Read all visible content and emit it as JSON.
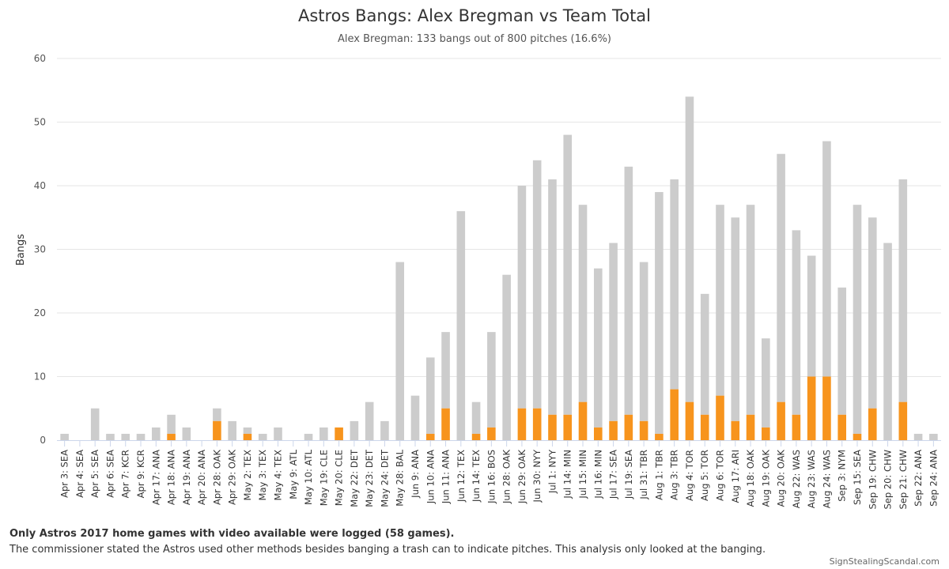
{
  "chart_data": {
    "type": "bar",
    "stacked": true,
    "title": "Astros Bangs: Alex Bregman vs Team Total",
    "subtitle": "Alex Bregman: 133 bangs out of 800 pitches (16.6%)",
    "xlabel": "",
    "ylabel": "Bangs",
    "ylim": [
      0,
      60
    ],
    "yticks": [
      0,
      10,
      20,
      30,
      40,
      50,
      60
    ],
    "grid": true,
    "legend": "none",
    "colors": {
      "bregman": "#f7941d",
      "team": "#cccccc",
      "grid": "#e6e6e6",
      "axis": "#ccd6eb"
    },
    "categories": [
      "Apr 3: SEA",
      "Apr 4: SEA",
      "Apr 5: SEA",
      "Apr 6: SEA",
      "Apr 7: KCR",
      "Apr 9: KCR",
      "Apr 17: ANA",
      "Apr 18: ANA",
      "Apr 19: ANA",
      "Apr 20: ANA",
      "Apr 28: OAK",
      "Apr 29: OAK",
      "May 2: TEX",
      "May 3: TEX",
      "May 4: TEX",
      "May 9: ATL",
      "May 10: ATL",
      "May 19: CLE",
      "May 20: CLE",
      "May 22: DET",
      "May 23: DET",
      "May 24: DET",
      "May 28: BAL",
      "Jun 9: ANA",
      "Jun 10: ANA",
      "Jun 11: ANA",
      "Jun 12: TEX",
      "Jun 14: TEX",
      "Jun 16: BOS",
      "Jun 28: OAK",
      "Jun 29: OAK",
      "Jun 30: NYY",
      "Jul 1: NYY",
      "Jul 14: MIN",
      "Jul 15: MIN",
      "Jul 16: MIN",
      "Jul 17: SEA",
      "Jul 19: SEA",
      "Jul 31: TBR",
      "Aug 1: TBR",
      "Aug 3: TBR",
      "Aug 4: TOR",
      "Aug 5: TOR",
      "Aug 6: TOR",
      "Aug 17: ARI",
      "Aug 18: OAK",
      "Aug 19: OAK",
      "Aug 20: OAK",
      "Aug 22: WAS",
      "Aug 23: WAS",
      "Aug 24: WAS",
      "Sep 3: NYM",
      "Sep 15: SEA",
      "Sep 19: CHW",
      "Sep 20: CHW",
      "Sep 21: CHW",
      "Sep 22: ANA",
      "Sep 24: ANA"
    ],
    "series": [
      {
        "key": "bregman",
        "values": [
          0,
          0,
          0,
          0,
          0,
          0,
          0,
          1,
          0,
          0,
          3,
          0,
          1,
          0,
          0,
          0,
          0,
          0,
          2,
          0,
          0,
          0,
          0,
          0,
          1,
          5,
          0,
          1,
          2,
          0,
          5,
          5,
          4,
          4,
          6,
          2,
          3,
          4,
          3,
          1,
          8,
          6,
          4,
          7,
          3,
          4,
          2,
          6,
          4,
          10,
          10,
          4,
          1,
          5,
          0,
          6,
          0,
          0
        ]
      },
      {
        "key": "team_total",
        "values": [
          1,
          0,
          5,
          1,
          1,
          1,
          2,
          4,
          2,
          0,
          5,
          3,
          2,
          1,
          2,
          0,
          1,
          2,
          2,
          3,
          6,
          3,
          28,
          7,
          13,
          17,
          36,
          6,
          17,
          26,
          40,
          44,
          41,
          48,
          37,
          27,
          31,
          43,
          28,
          39,
          41,
          54,
          23,
          37,
          35,
          37,
          16,
          45,
          33,
          29,
          47,
          24,
          37,
          35,
          31,
          41,
          1,
          1
        ]
      }
    ]
  },
  "footnote_bold": "Only Astros 2017 home games with video available were logged (58 games).",
  "footnote": "The commissioner stated the Astros used other methods besides banging a trash can to indicate pitches. This analysis only looked at the banging.",
  "credit": "SignStealingScandal.com"
}
